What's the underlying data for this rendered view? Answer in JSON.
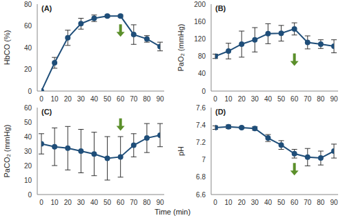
{
  "x_label": "Time (min)",
  "chart_data": [
    {
      "type": "line",
      "panel": "(A)",
      "ylabel": "HbCO (%)",
      "x": [
        0,
        10,
        20,
        30,
        40,
        50,
        60,
        70,
        80,
        90
      ],
      "values": [
        0,
        26,
        49,
        62,
        67,
        69,
        69,
        52,
        48,
        41
      ],
      "errors": [
        0,
        5,
        7,
        5,
        3,
        1,
        1,
        9,
        3,
        4
      ],
      "color": "#1f4e79",
      "xlim": [
        0,
        90
      ],
      "xticks": [
        0,
        10,
        20,
        30,
        40,
        50,
        60,
        70,
        80,
        90
      ],
      "ylim": [
        0,
        80
      ],
      "yticks": [
        0,
        20,
        40,
        60,
        80
      ],
      "marker": "circle",
      "arrow": {
        "x": 60,
        "y": 50
      }
    },
    {
      "type": "line",
      "panel": "(B)",
      "ylabel": "PaO₂ (mmHg)",
      "x": [
        0,
        10,
        20,
        30,
        40,
        50,
        60,
        70,
        80,
        90
      ],
      "values": [
        80,
        92,
        108,
        118,
        132,
        133,
        143,
        112,
        108,
        103
      ],
      "errors": [
        5,
        18,
        30,
        28,
        23,
        18,
        14,
        15,
        10,
        15
      ],
      "color": "#1f4e79",
      "xlim": [
        0,
        90
      ],
      "xticks": [
        0,
        10,
        20,
        30,
        40,
        50,
        60,
        70,
        80,
        90
      ],
      "ylim": [
        0,
        200
      ],
      "yticks": [
        0,
        40,
        80,
        120,
        160,
        200
      ],
      "marker": "circle",
      "arrow": {
        "x": 60,
        "y": 58
      }
    },
    {
      "type": "line",
      "panel": "(C)",
      "ylabel": "PaCO₂ (mmHg)",
      "x": [
        0,
        10,
        20,
        30,
        40,
        50,
        60,
        70,
        80,
        90
      ],
      "values": [
        35,
        33,
        32,
        30,
        28,
        25,
        26,
        34,
        39,
        41
      ],
      "errors": [
        7,
        13,
        15,
        15,
        15,
        15,
        14,
        8,
        10,
        8
      ],
      "color": "#1f4e79",
      "xlim": [
        0,
        90
      ],
      "xticks": [
        0,
        10,
        20,
        30,
        40,
        50,
        60,
        70,
        80,
        90
      ],
      "ylim": [
        0,
        60
      ],
      "yticks": [
        0,
        10,
        20,
        30,
        40,
        50,
        60
      ],
      "marker": "circle",
      "arrow": {
        "x": 60,
        "y": 44
      }
    },
    {
      "type": "line",
      "panel": "(D)",
      "ylabel": "pH",
      "x": [
        0,
        10,
        20,
        30,
        40,
        50,
        60,
        70,
        80,
        90
      ],
      "values": [
        7.37,
        7.38,
        7.37,
        7.36,
        7.25,
        7.17,
        7.07,
        7.03,
        7.02,
        7.1
      ],
      "errors": [
        0.02,
        0.02,
        0.01,
        0.02,
        0.04,
        0.05,
        0.05,
        0.1,
        0.08,
        0.08
      ],
      "color": "#1f4e79",
      "xlim": [
        0,
        90
      ],
      "xticks": [
        0,
        10,
        20,
        30,
        40,
        50,
        60,
        70,
        80,
        90
      ],
      "ylim": [
        6.6,
        7.6
      ],
      "yticks": [
        6.6,
        6.8,
        7,
        7.2,
        7.4,
        7.6
      ],
      "marker": "circle",
      "arrow": {
        "x": 60,
        "y": 6.82
      }
    }
  ]
}
